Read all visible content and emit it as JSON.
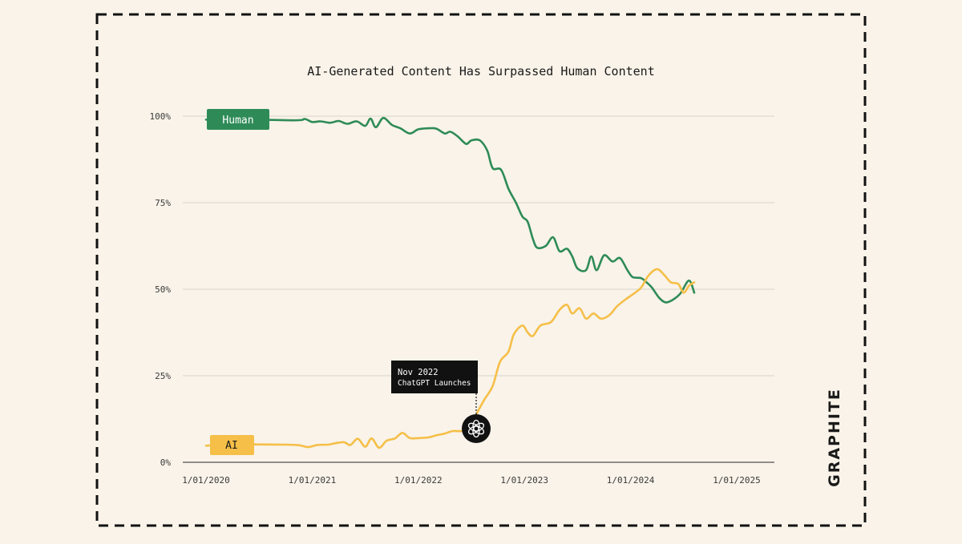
{
  "colors": {
    "background": "#f9f3e9",
    "human": "#2e8b57",
    "ai": "#f5bf48",
    "text": "#1a1a1a",
    "grid": "#d9d4cb",
    "annotation_bg": "#111111",
    "annotation_text": "#ffffff"
  },
  "brand": {
    "name": "GRAPHITE"
  },
  "chart_data": {
    "type": "line",
    "title": "AI-Generated Content Has Surpassed Human Content",
    "xlabel": "",
    "ylabel": "",
    "ylim": [
      0,
      100
    ],
    "xlim": [
      2020.0,
      2025.55
    ],
    "y_ticks": [
      {
        "value": 0,
        "label": "0%"
      },
      {
        "value": 25,
        "label": "25%"
      },
      {
        "value": 50,
        "label": "50%"
      },
      {
        "value": 75,
        "label": "75%"
      },
      {
        "value": 100,
        "label": "100%"
      }
    ],
    "x_ticks": [
      {
        "value": 2020,
        "label": "1/01/2020"
      },
      {
        "value": 2021,
        "label": "1/01/2021"
      },
      {
        "value": 2022,
        "label": "1/01/2022"
      },
      {
        "value": 2023,
        "label": "1/01/2023"
      },
      {
        "value": 2024,
        "label": "1/01/2024"
      },
      {
        "value": 2025,
        "label": "1/01/2025"
      }
    ],
    "grid": true,
    "series": [
      {
        "name": "Human",
        "color": "#2e8b57",
        "points": [
          [
            2020.0,
            99
          ],
          [
            2020.08,
            98.8
          ],
          [
            2020.17,
            99.2
          ],
          [
            2020.83,
            98.8
          ],
          [
            2020.93,
            99.2
          ],
          [
            2021.0,
            98.3
          ],
          [
            2021.08,
            98.5
          ],
          [
            2021.17,
            98.1
          ],
          [
            2021.25,
            98.6
          ],
          [
            2021.33,
            97.8
          ],
          [
            2021.42,
            98.5
          ],
          [
            2021.5,
            97.2
          ],
          [
            2021.55,
            99.3
          ],
          [
            2021.6,
            96.8
          ],
          [
            2021.67,
            99.5
          ],
          [
            2021.75,
            97.5
          ],
          [
            2021.83,
            96.5
          ],
          [
            2021.92,
            95.0
          ],
          [
            2022.0,
            96.2
          ],
          [
            2022.1,
            96.5
          ],
          [
            2022.17,
            96.4
          ],
          [
            2022.25,
            95.0
          ],
          [
            2022.3,
            95.5
          ],
          [
            2022.37,
            94.2
          ],
          [
            2022.45,
            92.0
          ],
          [
            2022.5,
            93.0
          ],
          [
            2022.58,
            93.0
          ],
          [
            2022.65,
            90.0
          ],
          [
            2022.7,
            85.0
          ],
          [
            2022.78,
            84.5
          ],
          [
            2022.85,
            79.0
          ],
          [
            2022.92,
            75.0
          ],
          [
            2022.98,
            71.0
          ],
          [
            2023.03,
            69.5
          ],
          [
            2023.08,
            64.5
          ],
          [
            2023.12,
            62.0
          ],
          [
            2023.2,
            62.5
          ],
          [
            2023.27,
            65.0
          ],
          [
            2023.33,
            61.0
          ],
          [
            2023.4,
            61.7
          ],
          [
            2023.45,
            59.5
          ],
          [
            2023.5,
            56.0
          ],
          [
            2023.58,
            55.5
          ],
          [
            2023.63,
            59.5
          ],
          [
            2023.68,
            55.5
          ],
          [
            2023.75,
            59.8
          ],
          [
            2023.83,
            58.0
          ],
          [
            2023.9,
            59.0
          ],
          [
            2023.97,
            55.5
          ],
          [
            2024.02,
            53.5
          ],
          [
            2024.1,
            53.2
          ],
          [
            2024.15,
            52.0
          ],
          [
            2024.2,
            50.5
          ],
          [
            2024.27,
            47.5
          ],
          [
            2024.33,
            46.2
          ],
          [
            2024.4,
            47.0
          ],
          [
            2024.47,
            48.8
          ],
          [
            2024.55,
            52.5
          ],
          [
            2024.6,
            49.0
          ]
        ]
      },
      {
        "name": "AI",
        "color": "#f5bf48",
        "points": [
          [
            2020.0,
            4.8
          ],
          [
            2020.1,
            4.9
          ],
          [
            2020.2,
            4.3
          ],
          [
            2020.27,
            5.1
          ],
          [
            2020.75,
            5.1
          ],
          [
            2020.88,
            4.9
          ],
          [
            2020.96,
            4.4
          ],
          [
            2021.05,
            5.0
          ],
          [
            2021.15,
            5.1
          ],
          [
            2021.22,
            5.5
          ],
          [
            2021.3,
            5.8
          ],
          [
            2021.36,
            5.0
          ],
          [
            2021.43,
            6.8
          ],
          [
            2021.5,
            4.5
          ],
          [
            2021.56,
            6.9
          ],
          [
            2021.63,
            4.2
          ],
          [
            2021.7,
            6.2
          ],
          [
            2021.78,
            6.9
          ],
          [
            2021.85,
            8.5
          ],
          [
            2021.92,
            7.0
          ],
          [
            2022.0,
            7.0
          ],
          [
            2022.1,
            7.2
          ],
          [
            2022.17,
            7.8
          ],
          [
            2022.25,
            8.3
          ],
          [
            2022.32,
            9.0
          ],
          [
            2022.4,
            9.0
          ],
          [
            2022.48,
            9.5
          ],
          [
            2022.55,
            14.0
          ],
          [
            2022.62,
            18.0
          ],
          [
            2022.7,
            22.0
          ],
          [
            2022.77,
            29.0
          ],
          [
            2022.85,
            32.0
          ],
          [
            2022.9,
            37.0
          ],
          [
            2022.98,
            39.5
          ],
          [
            2023.03,
            37.5
          ],
          [
            2023.08,
            36.5
          ],
          [
            2023.15,
            39.5
          ],
          [
            2023.25,
            40.5
          ],
          [
            2023.33,
            44.0
          ],
          [
            2023.4,
            45.5
          ],
          [
            2023.45,
            43.0
          ],
          [
            2023.52,
            44.5
          ],
          [
            2023.58,
            41.5
          ],
          [
            2023.65,
            43.0
          ],
          [
            2023.72,
            41.5
          ],
          [
            2023.8,
            42.5
          ],
          [
            2023.87,
            45.0
          ],
          [
            2023.95,
            47.0
          ],
          [
            2024.02,
            48.5
          ],
          [
            2024.1,
            50.5
          ],
          [
            2024.17,
            54.0
          ],
          [
            2024.25,
            55.8
          ],
          [
            2024.32,
            54.0
          ],
          [
            2024.38,
            52.0
          ],
          [
            2024.45,
            51.5
          ],
          [
            2024.5,
            49.0
          ],
          [
            2024.55,
            51.0
          ],
          [
            2024.6,
            52.0
          ]
        ]
      }
    ],
    "legend": [
      {
        "series": "Human",
        "label": "Human",
        "placement": "top-left, on the line"
      },
      {
        "series": "AI",
        "label": "AI",
        "placement": "bottom-left, on the line"
      }
    ],
    "annotations": [
      {
        "x": 2022.45,
        "y": 9.5,
        "line1": "Nov 2022",
        "line2": "ChatGPT Launches",
        "marker": "openai-logo"
      }
    ]
  }
}
